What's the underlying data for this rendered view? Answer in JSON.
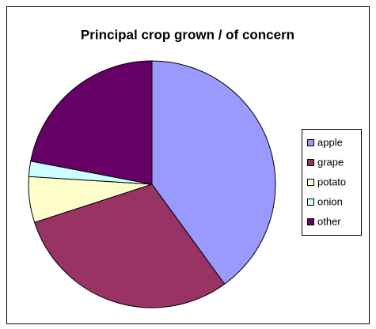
{
  "chart_data": {
    "type": "pie",
    "title": "Principal crop grown / of concern",
    "categories": [
      "apple",
      "grape",
      "potato",
      "onion",
      "other"
    ],
    "values": [
      40,
      30,
      6,
      2,
      22
    ],
    "colors": [
      "#9999ff",
      "#993366",
      "#ffffcc",
      "#ccffff",
      "#660066"
    ],
    "legend": "right"
  }
}
